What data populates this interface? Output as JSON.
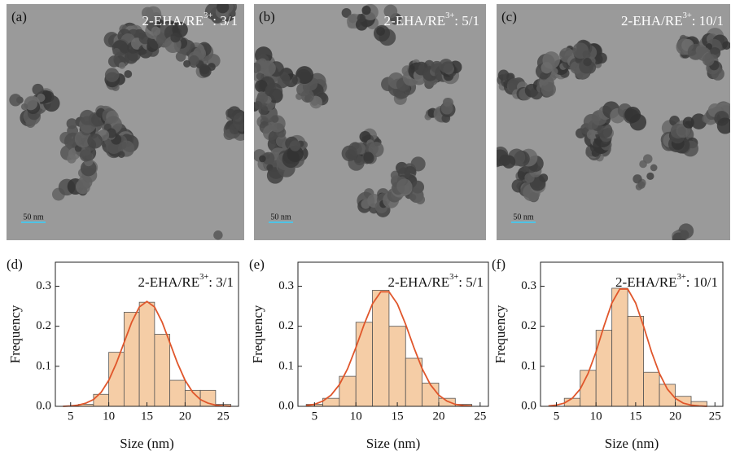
{
  "images": [
    {
      "label": "(a)",
      "caption": {
        "base": "2-EHA/RE",
        "sup": "3+",
        "rest": ": 3/1"
      },
      "scale_bar": "50 nm"
    },
    {
      "label": "(b)",
      "caption": {
        "base": "2-EHA/RE",
        "sup": "3+",
        "rest": ": 5/1"
      },
      "scale_bar": "50 nm"
    },
    {
      "label": "(c)",
      "caption": {
        "base": "2-EHA/RE",
        "sup": "3+",
        "rest": ": 10/1"
      },
      "scale_bar": "50 nm"
    }
  ],
  "chart_data": [
    {
      "type": "histogram",
      "panel_label": "(d)",
      "title": {
        "base": "2-EHA/RE",
        "sup": "3+",
        "rest": ": 3/1"
      },
      "x_label": "Size (nm)",
      "y_label": "Frequency",
      "bins": [
        6,
        8,
        10,
        12,
        14,
        16,
        18,
        20,
        22,
        24,
        26
      ],
      "values": [
        0.005,
        0.03,
        0.135,
        0.235,
        0.26,
        0.18,
        0.065,
        0.04,
        0.04,
        0.005
      ],
      "color": "#f5cda6",
      "edge_color": "#555555",
      "fit": {
        "color": "#e0562b",
        "x": [
          4,
          5,
          6,
          7,
          8,
          9,
          10,
          11,
          12,
          13,
          14,
          15,
          16,
          17,
          18,
          19,
          20,
          21,
          22,
          23,
          24,
          25,
          26
        ],
        "values": [
          0.0,
          0.001,
          0.003,
          0.008,
          0.017,
          0.035,
          0.065,
          0.108,
          0.159,
          0.21,
          0.248,
          0.262,
          0.248,
          0.21,
          0.159,
          0.108,
          0.065,
          0.035,
          0.017,
          0.008,
          0.003,
          0.001,
          0.0
        ]
      },
      "xlim": [
        3,
        27
      ],
      "xticks": [
        5,
        10,
        15,
        20,
        25
      ],
      "ylim": [
        0,
        0.36
      ],
      "yticks": [
        {
          "value": 0,
          "label": "0.0"
        },
        0.1,
        0.2,
        0.3
      ]
    },
    {
      "type": "histogram",
      "panel_label": "(e)",
      "title": {
        "base": "2-EHA/RE",
        "sup": "3+",
        "rest": ": 5/1"
      },
      "x_label": "Size (nm)",
      "y_label": "Frequency",
      "bins": [
        4,
        6,
        8,
        10,
        12,
        14,
        16,
        18,
        20,
        22,
        24
      ],
      "values": [
        0.005,
        0.02,
        0.075,
        0.21,
        0.29,
        0.2,
        0.12,
        0.058,
        0.02,
        0.005
      ],
      "color": "#f5cda6",
      "edge_color": "#555555",
      "fit": {
        "color": "#e0562b",
        "x": [
          4,
          5,
          6,
          7,
          8,
          9,
          10,
          11,
          12,
          13,
          14,
          15,
          16,
          17,
          18,
          19,
          20,
          21,
          22,
          23,
          24
        ],
        "values": [
          0.002,
          0.005,
          0.013,
          0.028,
          0.054,
          0.094,
          0.147,
          0.205,
          0.256,
          0.286,
          0.286,
          0.256,
          0.205,
          0.147,
          0.094,
          0.054,
          0.028,
          0.013,
          0.005,
          0.002,
          0.001
        ]
      },
      "xlim": [
        3,
        26
      ],
      "xticks": [
        5,
        10,
        15,
        20,
        25
      ],
      "ylim": [
        0,
        0.36
      ],
      "yticks": [
        {
          "value": 0,
          "label": "0.0"
        },
        0.1,
        0.2,
        0.3
      ]
    },
    {
      "type": "histogram",
      "panel_label": "(f)",
      "title": {
        "base": "2-EHA/RE",
        "sup": "3+",
        "rest": ": 10/1"
      },
      "x_label": "Size (nm)",
      "y_label": "Frequency",
      "bins": [
        6,
        8,
        10,
        12,
        14,
        16,
        18,
        20,
        22,
        24
      ],
      "values": [
        0.02,
        0.09,
        0.19,
        0.295,
        0.225,
        0.085,
        0.055,
        0.025,
        0.012
      ],
      "color": "#f5cda6",
      "edge_color": "#555555",
      "fit": {
        "color": "#e0562b",
        "x": [
          4,
          5,
          6,
          7,
          8,
          9,
          10,
          11,
          12,
          13,
          14,
          15,
          16,
          17,
          18,
          19,
          20,
          21,
          22,
          23,
          24
        ],
        "values": [
          0.001,
          0.003,
          0.008,
          0.02,
          0.043,
          0.082,
          0.136,
          0.2,
          0.258,
          0.293,
          0.293,
          0.258,
          0.2,
          0.136,
          0.082,
          0.043,
          0.02,
          0.008,
          0.003,
          0.001,
          0.0
        ]
      },
      "xlim": [
        3,
        26
      ],
      "xticks": [
        5,
        10,
        15,
        20,
        25
      ],
      "ylim": [
        0,
        0.36
      ],
      "yticks": [
        {
          "value": 0,
          "label": "0.0"
        },
        0.1,
        0.2,
        0.3
      ]
    }
  ]
}
